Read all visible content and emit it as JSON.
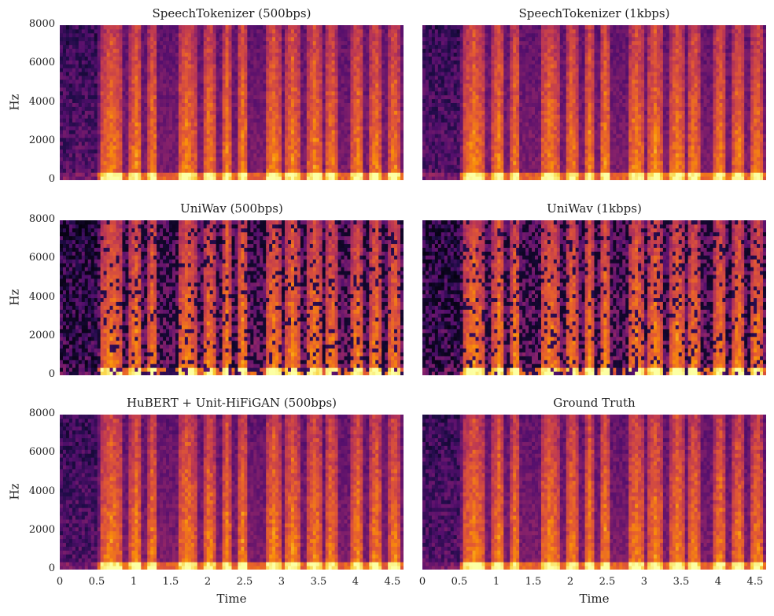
{
  "chart_data": {
    "type": "heatmap",
    "colormap": "inferno",
    "grid": false,
    "panels": [
      {
        "title": "SpeechTokenizer (500bps)",
        "ylabel": "Hz",
        "xlabel": "",
        "xlim": [
          0,
          4.65
        ],
        "ylim": [
          0,
          8000
        ],
        "yticks": [
          "0",
          "2000",
          "4000",
          "6000",
          "8000"
        ],
        "xticks": []
      },
      {
        "title": "SpeechTokenizer (1kbps)",
        "ylabel": "",
        "xlabel": "",
        "xlim": [
          0,
          4.65
        ],
        "ylim": [
          0,
          8000
        ],
        "yticks": [],
        "xticks": []
      },
      {
        "title": "UniWav (500bps)",
        "ylabel": "Hz",
        "xlabel": "",
        "xlim": [
          0,
          4.65
        ],
        "ylim": [
          0,
          8000
        ],
        "yticks": [
          "0",
          "2000",
          "4000",
          "6000",
          "8000"
        ],
        "xticks": []
      },
      {
        "title": "UniWav (1kbps)",
        "ylabel": "",
        "xlabel": "",
        "xlim": [
          0,
          4.65
        ],
        "ylim": [
          0,
          8000
        ],
        "yticks": [],
        "xticks": []
      },
      {
        "title": "HuBERT + Unit-HiFiGAN (500bps)",
        "ylabel": "Hz",
        "xlabel": "Time",
        "xlim": [
          0,
          4.65
        ],
        "ylim": [
          0,
          8000
        ],
        "yticks": [
          "0",
          "2000",
          "4000",
          "6000",
          "8000"
        ],
        "xticks": [
          "0",
          "0.5",
          "1",
          "1.5",
          "2",
          "2.5",
          "3",
          "3.5",
          "4",
          "4.5"
        ]
      },
      {
        "title": "Ground Truth",
        "ylabel": "",
        "xlabel": "Time",
        "xlim": [
          0,
          4.65
        ],
        "ylim": [
          0,
          8000
        ],
        "yticks": [],
        "xticks": [
          "0",
          "0.5",
          "1",
          "1.5",
          "2",
          "2.5",
          "3",
          "3.5",
          "4",
          "4.5"
        ]
      }
    ],
    "speech_bursts_sec": [
      [
        0.55,
        0.85
      ],
      [
        0.95,
        1.12
      ],
      [
        1.2,
        1.32
      ],
      [
        1.6,
        1.85
      ],
      [
        1.95,
        2.1
      ],
      [
        2.2,
        2.32
      ],
      [
        2.4,
        2.55
      ],
      [
        2.78,
        3.0
      ],
      [
        3.05,
        3.25
      ],
      [
        3.35,
        3.55
      ],
      [
        3.6,
        3.75
      ],
      [
        3.95,
        4.1
      ],
      [
        4.2,
        4.35
      ],
      [
        4.45,
        4.6
      ]
    ]
  }
}
